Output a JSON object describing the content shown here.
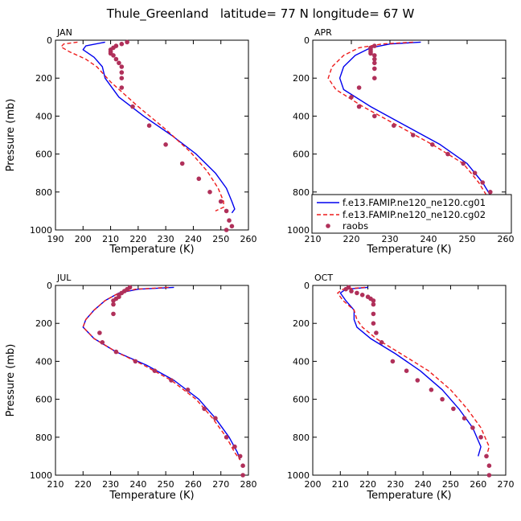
{
  "title": "Thule_Greenland   latitude= 77 N longitude= 67 W",
  "colors": {
    "model1": "#0000ee",
    "model2": "#ee1c1c",
    "raobs": "#b0305a"
  },
  "legend": {
    "entries": [
      "f.e13.FAMIP.ne120_ne120.cg01",
      "f.e13.FAMIP.ne120_ne120.cg02",
      "raobs"
    ]
  },
  "chart_data": [
    {
      "type": "line",
      "title": "JAN",
      "xlabel": "Temperature (K)",
      "ylabel": "Pressure (mb)",
      "xlim": [
        190,
        260
      ],
      "ylim": [
        0,
        1000
      ],
      "xticks": [
        190,
        200,
        210,
        220,
        230,
        240,
        250,
        260
      ],
      "yticks": [
        0,
        200,
        400,
        600,
        800,
        1000
      ],
      "series": [
        {
          "name": "f.e13.FAMIP.ne120_ne120.cg01",
          "x": [
            208,
            201,
            200,
            204,
            207,
            208,
            213,
            222,
            232,
            241,
            248,
            252,
            254,
            255,
            254
          ],
          "y": [
            10,
            30,
            50,
            90,
            140,
            200,
            300,
            400,
            500,
            600,
            700,
            780,
            850,
            890,
            910
          ]
        },
        {
          "name": "f.e13.FAMIP.ne120_ne120.cg02",
          "x": [
            198,
            193,
            192,
            195,
            201,
            205,
            210,
            220,
            230,
            239,
            245,
            249,
            251,
            251,
            248
          ],
          "y": [
            10,
            20,
            35,
            60,
            100,
            140,
            220,
            350,
            470,
            590,
            690,
            780,
            850,
            880,
            900
          ]
        },
        {
          "name": "raobs",
          "x": [
            216,
            214,
            212,
            211,
            210,
            210,
            210,
            211,
            212,
            213,
            214,
            214,
            214,
            214,
            218,
            224,
            230,
            236,
            242,
            246,
            250,
            252,
            253,
            254,
            252
          ],
          "y": [
            10,
            20,
            30,
            40,
            50,
            60,
            70,
            80,
            100,
            120,
            140,
            170,
            200,
            250,
            350,
            450,
            550,
            650,
            730,
            800,
            850,
            900,
            950,
            980,
            1000
          ]
        }
      ]
    },
    {
      "type": "line",
      "title": "APR",
      "xlabel": "Temperature (K)",
      "ylabel": "Pressure (mb)",
      "xlim": [
        210,
        260
      ],
      "ylim": [
        0,
        1000
      ],
      "xticks": [
        210,
        220,
        230,
        240,
        250,
        260
      ],
      "yticks": [
        0,
        200,
        400,
        600,
        800,
        1000
      ],
      "series": [
        {
          "name": "f.e13.FAMIP.ne120_ne120.cg01",
          "x": [
            238,
            230,
            225,
            221,
            218,
            217,
            218,
            225,
            234,
            243,
            250,
            254,
            257,
            258,
            257
          ],
          "y": [
            10,
            20,
            40,
            80,
            140,
            200,
            260,
            350,
            450,
            550,
            650,
            750,
            850,
            900,
            930
          ]
        },
        {
          "name": "f.e13.FAMIP.ne120_ne120.cg02",
          "x": [
            236,
            228,
            222,
            218,
            215,
            214,
            216,
            223,
            232,
            241,
            249,
            253,
            256,
            257,
            256
          ],
          "y": [
            10,
            20,
            40,
            80,
            140,
            200,
            260,
            350,
            450,
            550,
            650,
            750,
            850,
            890,
            920
          ]
        },
        {
          "name": "raobs",
          "x": [
            226,
            225,
            225,
            225,
            225,
            226,
            226,
            226,
            226,
            226,
            222,
            220,
            222,
            226,
            231,
            236,
            241,
            245,
            249,
            252,
            254,
            256,
            257,
            258,
            258
          ],
          "y": [
            30,
            40,
            50,
            60,
            70,
            80,
            100,
            120,
            150,
            200,
            250,
            300,
            350,
            400,
            450,
            500,
            550,
            600,
            650,
            700,
            750,
            800,
            850,
            900,
            1000
          ]
        }
      ]
    },
    {
      "type": "line",
      "title": "JUL",
      "xlabel": "Temperature (K)",
      "ylabel": "Pressure (mb)",
      "xlim": [
        210,
        280
      ],
      "ylim": [
        0,
        1000
      ],
      "xticks": [
        210,
        220,
        230,
        240,
        250,
        260,
        270,
        280
      ],
      "yticks": [
        0,
        200,
        400,
        600,
        800,
        1000
      ],
      "series": [
        {
          "name": "f.e13.FAMIP.ne120_ne120.cg01",
          "x": [
            253,
            240,
            233,
            228,
            224,
            221,
            220,
            224,
            232,
            243,
            253,
            262,
            268,
            273,
            276,
            277
          ],
          "y": [
            10,
            20,
            40,
            80,
            130,
            180,
            220,
            280,
            350,
            420,
            500,
            600,
            700,
            800,
            880,
            920
          ]
        },
        {
          "name": "f.e13.FAMIP.ne120_ne120.cg02",
          "x": [
            251,
            239,
            233,
            228,
            224,
            221,
            220,
            224,
            232,
            242,
            252,
            261,
            267,
            272,
            275,
            277
          ],
          "y": [
            10,
            20,
            40,
            80,
            130,
            180,
            220,
            280,
            350,
            420,
            500,
            600,
            700,
            800,
            880,
            920
          ]
        },
        {
          "name": "raobs",
          "x": [
            237,
            236,
            235,
            234,
            233,
            233,
            232,
            231,
            231,
            231,
            226,
            227,
            232,
            239,
            246,
            252,
            258,
            264,
            268,
            272,
            275,
            277,
            278,
            278
          ],
          "y": [
            10,
            20,
            30,
            40,
            50,
            60,
            70,
            80,
            100,
            150,
            250,
            300,
            350,
            400,
            450,
            500,
            550,
            650,
            700,
            800,
            850,
            900,
            950,
            1000
          ]
        }
      ]
    },
    {
      "type": "line",
      "title": "OCT",
      "xlabel": "Temperature (K)",
      "ylabel": "Pressure (mb)",
      "xlim": [
        200,
        270
      ],
      "ylim": [
        0,
        1000
      ],
      "xticks": [
        200,
        210,
        220,
        230,
        240,
        250,
        260,
        270
      ],
      "yticks": [
        0,
        200,
        400,
        600,
        800,
        1000
      ],
      "series": [
        {
          "name": "f.e13.FAMIP.ne120_ne120.cg01",
          "x": [
            220,
            212,
            210,
            212,
            215,
            215,
            216,
            221,
            230,
            239,
            247,
            253,
            258,
            261,
            260
          ],
          "y": [
            10,
            20,
            40,
            80,
            130,
            180,
            220,
            280,
            360,
            450,
            550,
            650,
            750,
            850,
            900
          ]
        },
        {
          "name": "f.e13.FAMIP.ne120_ne120.cg02",
          "x": [
            219,
            211,
            209,
            211,
            215,
            216,
            218,
            223,
            232,
            242,
            250,
            256,
            261,
            264,
            263
          ],
          "y": [
            10,
            20,
            40,
            80,
            130,
            180,
            220,
            280,
            360,
            450,
            550,
            650,
            750,
            850,
            900
          ]
        },
        {
          "name": "raobs",
          "x": [
            213,
            212,
            214,
            216,
            218,
            220,
            221,
            222,
            222,
            222,
            222,
            223,
            225,
            229,
            234,
            238,
            243,
            247,
            251,
            255,
            258,
            261,
            263,
            264,
            264
          ],
          "y": [
            10,
            20,
            30,
            40,
            50,
            60,
            70,
            80,
            100,
            150,
            200,
            250,
            300,
            400,
            450,
            500,
            550,
            600,
            650,
            700,
            750,
            800,
            900,
            950,
            1000
          ]
        }
      ]
    }
  ]
}
